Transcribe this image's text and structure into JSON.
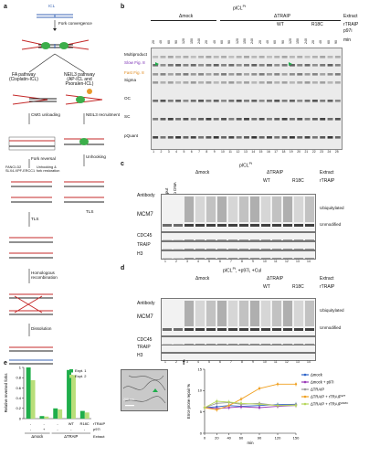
{
  "panels": {
    "a": "a",
    "b": "b",
    "c": "c",
    "d": "d",
    "e": "e",
    "f": "f"
  },
  "panel_a": {
    "icl_label": "ICL",
    "fork_convergence": "Fork convergence",
    "fa_pathway": "FA pathway\n(Cisplatin-ICL)",
    "neil3_pathway": "NEIL3 pathway\n(AP-ICL and\nPsoralen-ICL)",
    "cmg_unloading": "CMG unloading",
    "neil3_recruitment": "NEIL3 recruitment",
    "fork_reversal": "Fork reversal",
    "unhooking_right": "Unhooking",
    "fancd2": "FANCI-D2\nSLX4-XPF-ERCC1",
    "unhooking_left": "Unhooking &\nfork restoration",
    "tls_right": "TLS",
    "tls_left": "TLS",
    "homologous": "Homologous\nrecombination",
    "dissolution": "Dissolution"
  },
  "panel_b": {
    "title": "pICL",
    "title_sup": "Pt",
    "extract_label": "Extract",
    "rtraip_label": "rTRAIP",
    "p97i_label": "p97i",
    "min_label": "min",
    "mock": "Δmock",
    "traip": "ΔTRAIP",
    "wt": "WT",
    "r18c": "R18C",
    "left_labels": [
      "Multiproduct",
      "Slow Fig. 8",
      "Fast Fig. 8",
      "Sigma",
      "OC",
      "SC",
      "pQuant"
    ],
    "lane_numbers": [
      "1",
      "2",
      "3",
      "4",
      "5",
      "6",
      "7",
      "8",
      "9",
      "10",
      "11",
      "12",
      "13",
      "14",
      "15",
      "16",
      "17",
      "18",
      "19",
      "20",
      "21",
      "22",
      "23",
      "24",
      "25"
    ],
    "minutes": [
      "20",
      "40",
      "60",
      "90",
      "120",
      "150",
      "240",
      "20",
      "40",
      "60",
      "90",
      "120",
      "150",
      "240",
      "20",
      "40",
      "60",
      "90",
      "120",
      "150",
      "240",
      "20",
      "40",
      "60",
      "90"
    ]
  },
  "panel_c": {
    "title": "pICL",
    "title_sup": "Pt",
    "extract_label": "Extract",
    "rtraip_label": "rTRAIP",
    "mock": "Δmock",
    "traip": "ΔTRAIP",
    "wt": "WT",
    "r18c": "R18C",
    "antibody": "Antibody",
    "input": "Input",
    "no_dna": "No DNA",
    "rows": [
      "MCM7",
      "CDC45",
      "TRAIP",
      "H3"
    ],
    "ubiquitylated": "Ubiquitylated",
    "unmodified": "Unmodified",
    "minutes": [
      "15",
      "30",
      "45",
      "15",
      "30",
      "45",
      "15",
      "30",
      "45",
      "15",
      "30",
      "45"
    ],
    "lane_numbers": [
      "1",
      "2",
      "3",
      "4",
      "5",
      "6",
      "7",
      "8",
      "9",
      "10",
      "11",
      "12",
      "13",
      "14"
    ]
  },
  "panel_d": {
    "title": "pICL",
    "title_sup": "Pt",
    "subtitle": ", +p97i, +Cul",
    "extract_label": "Extract",
    "rtraip_label": "rTRAIP",
    "mock": "Δmock",
    "traip": "ΔTRAIP",
    "wt": "WT",
    "r18c": "R18C",
    "antibody": "Antibody",
    "input": "Input",
    "no_dna": "No DNA",
    "rows": [
      "MCM7",
      "CDC45",
      "TRAIP",
      "H3"
    ],
    "ubiquitylated": "Ubiquitylated",
    "unmodified": "Unmodified",
    "lane_numbers": [
      "1",
      "2",
      "3",
      "4",
      "5",
      "6",
      "7",
      "8",
      "9",
      "10",
      "11",
      "12",
      "13",
      "14"
    ]
  },
  "panel_e": {
    "ylabel": "Relative reversed forks",
    "legend": [
      "Expt. 1",
      "Expt. 2"
    ],
    "rtraip_label": "rTRAIP",
    "p97i_label": "p97i",
    "extract_label": "Extract",
    "mock": "Δmock",
    "traip": "ΔTRAIP",
    "rtraip_values": [
      "-",
      "-",
      "-",
      "WT",
      "R18C"
    ],
    "p97i_values": [
      "-",
      "+",
      "-",
      "-",
      "-"
    ],
    "scale_bar": "200 nm",
    "colors": [
      "#1fae4b",
      "#b9de7a"
    ]
  },
  "panel_f": {
    "ylabel": "Error-prone repair %",
    "xlabel": "min",
    "legend": [
      "Δmock",
      "Δmock + p97i",
      "ΔTRAIP",
      "ΔTRAIP + rTRAIP",
      "ΔTRAIP + rTRAIP"
    ],
    "legend_sup": [
      "",
      "",
      "",
      "WT",
      "R18C"
    ],
    "colors": [
      "#2d63c8",
      "#9a3ab8",
      "#9a9a9a",
      "#f0a020",
      "#b5d65a"
    ]
  },
  "chart_data": [
    {
      "type": "bar",
      "title": "",
      "ylabel": "Relative reversed forks",
      "categories": [
        "Δmock",
        "Δmock + p97i",
        "ΔTRAIP",
        "ΔTRAIP + WT",
        "ΔTRAIP + R18C"
      ],
      "series": [
        {
          "name": "Expt. 1",
          "values": [
            1.0,
            0.05,
            0.2,
            0.95,
            0.15
          ]
        },
        {
          "name": "Expt. 2",
          "values": [
            0.75,
            0.04,
            0.18,
            0.85,
            0.12
          ]
        }
      ],
      "ylim": [
        0,
        1
      ],
      "yticks": [
        "0",
        "0.2",
        "0.4",
        "0.6",
        "0.8",
        "1"
      ]
    },
    {
      "type": "line",
      "title": "",
      "ylabel": "Error-prone repair %",
      "xlabel": "min",
      "x": [
        0,
        20,
        40,
        60,
        90,
        120,
        150
      ],
      "xticks": [
        "0",
        "20",
        "40",
        "60",
        "90",
        "120",
        "150"
      ],
      "ylim": [
        0,
        15
      ],
      "yticks": [
        "0",
        "5",
        "10",
        "15"
      ],
      "series": [
        {
          "name": "Δmock",
          "values": [
            6,
            6.2,
            6.5,
            6.3,
            6.5,
            6.7,
            6.8
          ]
        },
        {
          "name": "Δmock + p97i",
          "values": [
            6,
            5.8,
            6.0,
            6.2,
            6.0,
            6.3,
            6.5
          ]
        },
        {
          "name": "ΔTRAIP",
          "values": [
            6,
            7.0,
            7.2,
            6.8,
            7.0,
            6.5,
            6.7
          ]
        },
        {
          "name": "ΔTRAIP + rTRAIPWT",
          "values": [
            6,
            5.5,
            6.5,
            8.0,
            10.5,
            11.5,
            11.5
          ]
        },
        {
          "name": "ΔTRAIP + rTRAIPR18C",
          "values": [
            6,
            7.5,
            7.3,
            7.0,
            6.8,
            6.5,
            6.5
          ]
        }
      ]
    }
  ]
}
